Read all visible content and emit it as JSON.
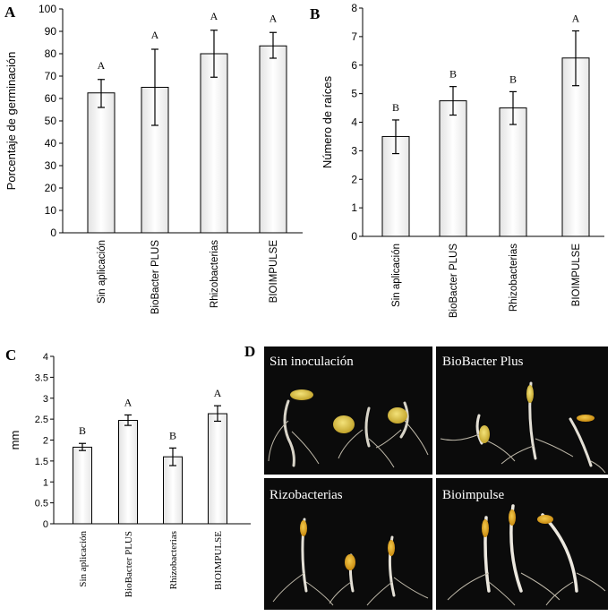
{
  "panel_letters": {
    "a": "A",
    "b": "B",
    "c": "C",
    "d": "D"
  },
  "chart_data": [
    {
      "type": "bar",
      "panel": "A",
      "ylabel": "Porcentaje de germinación",
      "ylim": [
        0,
        100
      ],
      "yticks": [
        0,
        10,
        20,
        30,
        40,
        50,
        60,
        70,
        80,
        90,
        100
      ],
      "categories": [
        "Sin aplicación",
        "BioBacter PLUS",
        "Rhizobacterias",
        "BIOIMPULSE"
      ],
      "values": [
        62.5,
        65,
        80,
        83.5
      ],
      "error_low": [
        56,
        48,
        69.5,
        78
      ],
      "error_high": [
        68.5,
        82,
        90.5,
        89.5
      ],
      "letters": [
        "A",
        "A",
        "A",
        "A"
      ]
    },
    {
      "type": "bar",
      "panel": "B",
      "ylabel": "Número de raíces",
      "ylim": [
        0,
        8
      ],
      "yticks": [
        0,
        1,
        2,
        3,
        4,
        5,
        6,
        7,
        8
      ],
      "categories": [
        "Sin aplicación",
        "BioBacter PLUS",
        "Rhizobacterias",
        "BIOIMPULSE"
      ],
      "values": [
        3.5,
        4.75,
        4.5,
        6.25
      ],
      "error_low": [
        2.9,
        4.25,
        3.92,
        5.28
      ],
      "error_high": [
        4.08,
        5.25,
        5.07,
        7.2
      ],
      "letters": [
        "B",
        "B",
        "B",
        "A"
      ]
    },
    {
      "type": "bar",
      "panel": "C",
      "ylabel": "mm",
      "ylim": [
        0,
        4
      ],
      "yticks": [
        "0",
        "0.5",
        "1",
        "1.5",
        "2",
        "2.5",
        "3",
        "3.5",
        "4"
      ],
      "categories": [
        "Sin aplicación",
        "BioBacter PLUS",
        "Rhizobacterias",
        "BIOIMPULSE"
      ],
      "values": [
        1.83,
        2.47,
        1.6,
        2.63
      ],
      "error_low": [
        1.75,
        2.35,
        1.39,
        2.45
      ],
      "error_high": [
        1.92,
        2.6,
        1.81,
        2.82
      ],
      "letters": [
        "B",
        "A",
        "B",
        "A"
      ]
    }
  ],
  "photos": [
    {
      "label": "Sin inoculación"
    },
    {
      "label": "BioBacter Plus"
    },
    {
      "label": "Rizobacterias"
    },
    {
      "label": "Bioimpulse"
    }
  ]
}
